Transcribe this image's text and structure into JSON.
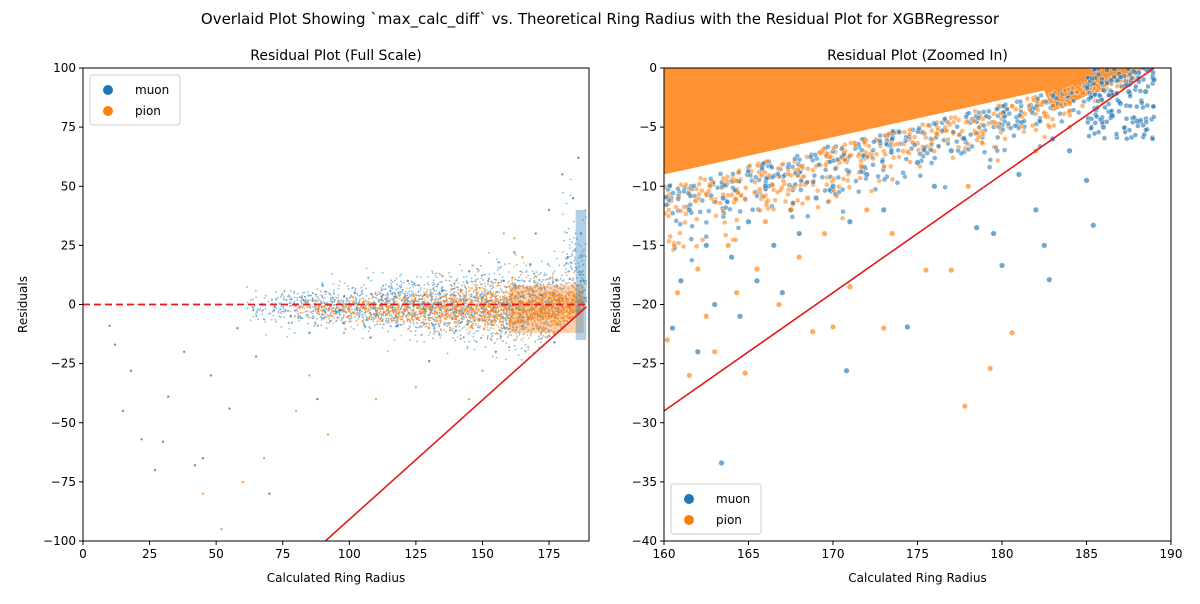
{
  "figure": {
    "suptitle": "Overlaid Plot Showing `max_calc_diff` vs. Theoretical Ring Radius with the Residual Plot for XGBRegressor"
  },
  "colors": {
    "muon": "#1f77b4",
    "pion": "#ff7f0e",
    "zero_line": "#e41a1c",
    "bound_line": "#e41a1c"
  },
  "chart_data": [
    {
      "type": "scatter",
      "title": "Residual Plot (Full Scale)",
      "xlabel": "Calculated Ring Radius",
      "ylabel": "Residuals",
      "xlim": [
        0,
        190
      ],
      "ylim": [
        -100,
        100
      ],
      "xticks": [
        0,
        25,
        50,
        75,
        100,
        125,
        150,
        175
      ],
      "yticks": [
        -100,
        -75,
        -50,
        -25,
        0,
        25,
        50,
        75,
        100
      ],
      "legend": {
        "position": "top-left",
        "entries": [
          "muon",
          "pion"
        ]
      },
      "reference_lines": [
        {
          "kind": "horizontal-dashed",
          "y": 0
        },
        {
          "kind": "boundary",
          "x": [
            91,
            189
          ],
          "y": [
            -100,
            -1
          ]
        }
      ],
      "series": [
        {
          "name": "muon",
          "points": [
            [
              10,
              -9
            ],
            [
              12,
              -17
            ],
            [
              15,
              -45
            ],
            [
              18,
              -28
            ],
            [
              22,
              -57
            ],
            [
              27,
              -70
            ],
            [
              30,
              -58
            ],
            [
              32,
              -39
            ],
            [
              38,
              -20
            ],
            [
              42,
              -68
            ],
            [
              45,
              -65
            ],
            [
              48,
              -30
            ],
            [
              55,
              -44
            ],
            [
              58,
              -10
            ],
            [
              65,
              -22
            ],
            [
              70,
              -80
            ],
            [
              72,
              -1
            ],
            [
              78,
              -5
            ],
            [
              82,
              3
            ],
            [
              85,
              -12
            ],
            [
              88,
              -40
            ],
            [
              90,
              8
            ],
            [
              95,
              -3
            ],
            [
              98,
              -8
            ],
            [
              102,
              5
            ],
            [
              108,
              -14
            ],
            [
              112,
              2
            ],
            [
              118,
              -9
            ],
            [
              122,
              10
            ],
            [
              128,
              -2
            ],
            [
              130,
              -24
            ],
            [
              135,
              6
            ],
            [
              140,
              -11
            ],
            [
              145,
              14
            ],
            [
              150,
              3
            ],
            [
              155,
              -20
            ],
            [
              158,
              10
            ],
            [
              162,
              22
            ],
            [
              165,
              -9
            ],
            [
              168,
              17
            ],
            [
              170,
              30
            ],
            [
              172,
              4
            ],
            [
              175,
              40
            ],
            [
              177,
              -16
            ],
            [
              180,
              55
            ],
            [
              182,
              20
            ],
            [
              184,
              45
            ],
            [
              186,
              62
            ],
            [
              187,
              30
            ],
            [
              188,
              10
            ]
          ]
        },
        {
          "name": "pion",
          "points": [
            [
              45,
              -80
            ],
            [
              52,
              -95
            ],
            [
              60,
              -75
            ],
            [
              68,
              -65
            ],
            [
              80,
              -45
            ],
            [
              85,
              -30
            ],
            [
              92,
              -55
            ],
            [
              98,
              -12
            ],
            [
              105,
              -7
            ],
            [
              110,
              -40
            ],
            [
              115,
              -3
            ],
            [
              120,
              -5
            ],
            [
              125,
              -35
            ],
            [
              130,
              -10
            ],
            [
              135,
              12
            ],
            [
              140,
              -6
            ],
            [
              145,
              -40
            ],
            [
              148,
              15
            ],
            [
              150,
              -28
            ],
            [
              155,
              2
            ],
            [
              158,
              30
            ],
            [
              160,
              -18
            ],
            [
              162,
              28
            ],
            [
              165,
              20
            ],
            [
              168,
              -5
            ],
            [
              170,
              8
            ],
            [
              172,
              -12
            ],
            [
              175,
              3
            ],
            [
              178,
              -8
            ],
            [
              180,
              2
            ]
          ]
        }
      ]
    },
    {
      "type": "scatter",
      "title": "Residual Plot (Zoomed In)",
      "xlabel": "Calculated Ring Radius",
      "ylabel": "Residuals",
      "xlim": [
        160,
        190
      ],
      "ylim": [
        -40,
        0
      ],
      "xticks": [
        160,
        165,
        170,
        175,
        180,
        185,
        190
      ],
      "yticks": [
        -40,
        -35,
        -30,
        -25,
        -20,
        -15,
        -10,
        -5,
        0
      ],
      "legend": {
        "position": "bottom-left",
        "entries": [
          "muon",
          "pion"
        ]
      },
      "reference_lines": [
        {
          "kind": "boundary",
          "x": [
            160,
            189
          ],
          "y": [
            -29,
            0
          ]
        }
      ],
      "series": [
        {
          "name": "muon",
          "points": [
            [
              160.5,
              -22
            ],
            [
              161,
              -18
            ],
            [
              161.5,
              -12
            ],
            [
              162,
              -24
            ],
            [
              162.5,
              -15
            ],
            [
              163,
              -20
            ],
            [
              163.4,
              -33.4
            ],
            [
              163.5,
              -11
            ],
            [
              164,
              -16
            ],
            [
              164.5,
              -21
            ],
            [
              165,
              -13
            ],
            [
              165.5,
              -18
            ],
            [
              166,
              -10
            ],
            [
              166.5,
              -15
            ],
            [
              167,
              -19
            ],
            [
              167.5,
              -12
            ],
            [
              168,
              -14
            ],
            [
              169,
              -11
            ],
            [
              170,
              -10
            ],
            [
              170.8,
              -25.6
            ],
            [
              171,
              -13
            ],
            [
              172,
              -9
            ],
            [
              173,
              -12
            ],
            [
              174.4,
              -21.9
            ],
            [
              175,
              -8
            ],
            [
              176,
              -10
            ],
            [
              177,
              -7
            ],
            [
              178.5,
              -13.5
            ],
            [
              179.5,
              -14
            ],
            [
              180,
              -16.7
            ],
            [
              181,
              -9
            ],
            [
              182,
              -12
            ],
            [
              182.5,
              -15
            ],
            [
              182.8,
              -17.9
            ],
            [
              183,
              -6
            ],
            [
              184,
              -7
            ],
            [
              185,
              -9.5
            ],
            [
              185.4,
              -13.3
            ],
            [
              186,
              -5
            ],
            [
              186.5,
              -4
            ],
            [
              187,
              -3
            ],
            [
              187.5,
              -2
            ],
            [
              188,
              -4.5
            ],
            [
              188.5,
              -2
            ],
            [
              189,
              -1
            ]
          ]
        },
        {
          "name": "pion",
          "points": [
            [
              160.2,
              -23
            ],
            [
              160.8,
              -19
            ],
            [
              161.5,
              -26
            ],
            [
              162,
              -17
            ],
            [
              162.5,
              -21
            ],
            [
              163,
              -24
            ],
            [
              163.8,
              -15
            ],
            [
              164.3,
              -19
            ],
            [
              164.8,
              -25.8
            ],
            [
              165.5,
              -17
            ],
            [
              166,
              -13
            ],
            [
              166.8,
              -20
            ],
            [
              167.5,
              -12
            ],
            [
              168,
              -16
            ],
            [
              168.5,
              -11
            ],
            [
              168.8,
              -22.3
            ],
            [
              169.5,
              -14
            ],
            [
              170,
              -21.9
            ],
            [
              171,
              -18.5
            ],
            [
              172,
              -12
            ],
            [
              173,
              -22
            ],
            [
              173.5,
              -14
            ],
            [
              175.5,
              -17.1
            ],
            [
              177,
              -17.1
            ],
            [
              177.8,
              -28.6
            ],
            [
              178,
              -10
            ],
            [
              179.3,
              -25.4
            ],
            [
              180.6,
              -22.4
            ],
            [
              182,
              -7
            ],
            [
              184,
              -3
            ]
          ]
        }
      ]
    }
  ]
}
